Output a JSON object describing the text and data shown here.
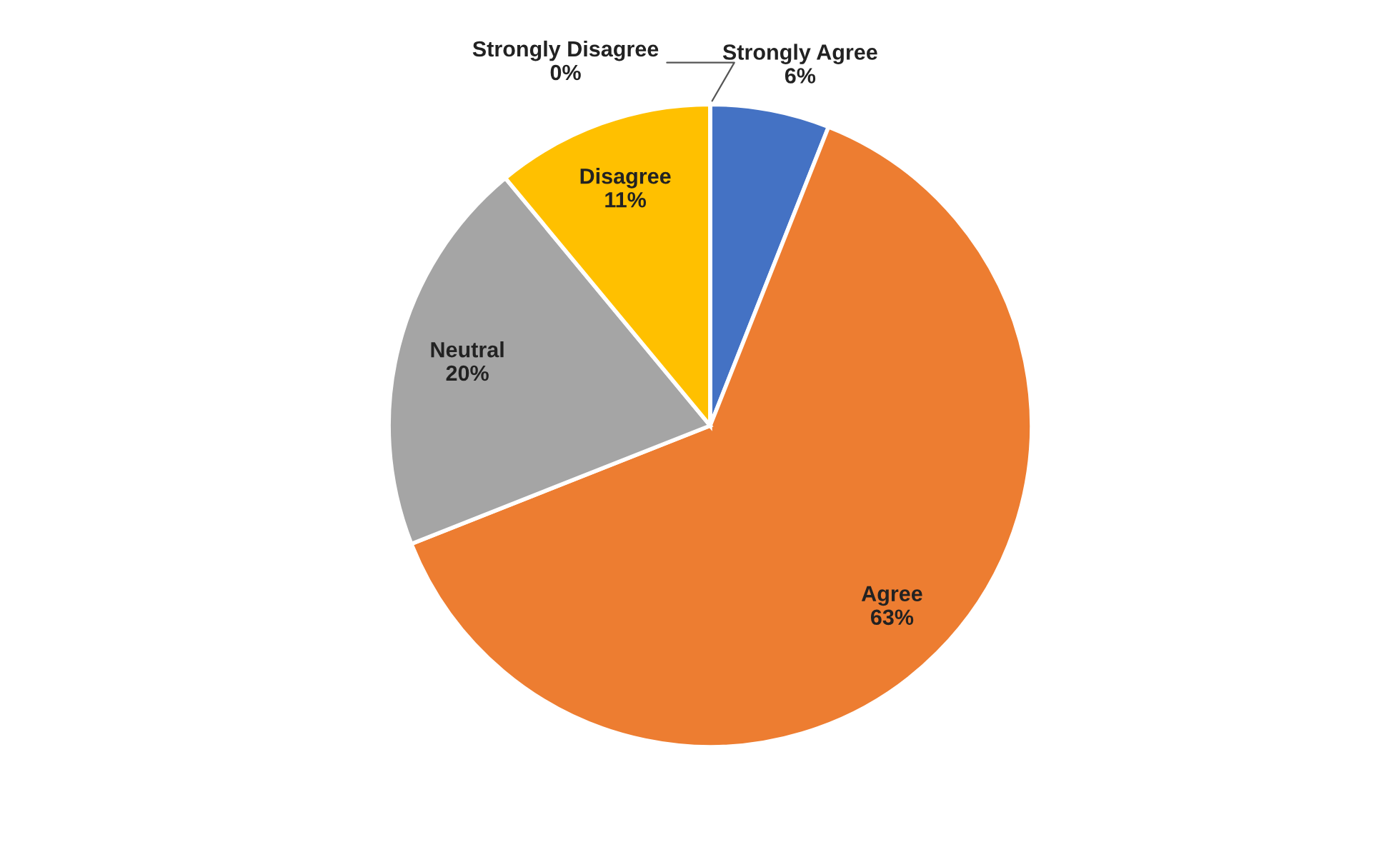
{
  "chart_data": {
    "type": "pie",
    "categories": [
      "Strongly Agree",
      "Agree",
      "Neutral",
      "Disagree",
      "Strongly Disagree"
    ],
    "values": [
      6,
      63,
      20,
      11,
      0
    ],
    "colors": [
      "#4472c4",
      "#ed7d31",
      "#a5a5a5",
      "#ffc000",
      "#5b9bd5"
    ],
    "value_labels": [
      "6%",
      "63%",
      "20%",
      "11%",
      "0%"
    ],
    "legend": false
  }
}
